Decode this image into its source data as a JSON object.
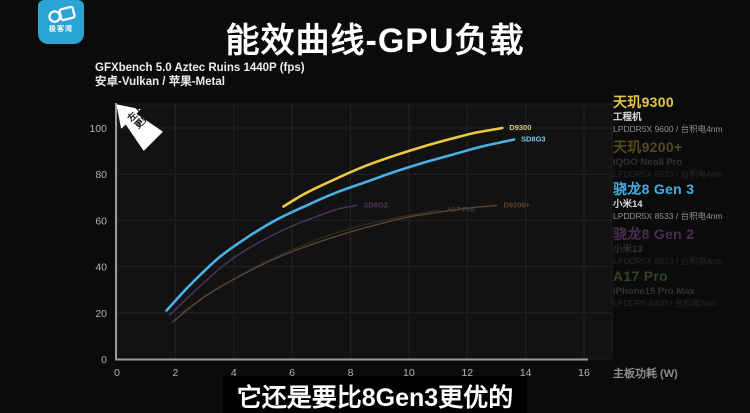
{
  "window": {
    "bg": "#0b0b0b"
  },
  "logo": {
    "label": "极客湾",
    "color": "#2ba3d4",
    "icon": "camera-icon"
  },
  "header": {
    "title": "能效曲线-GPU负载"
  },
  "chart": {
    "subtitle1": "GFXbench 5.0 Aztec Ruins 1440P (fps)",
    "subtitle2": "安卓-Vulkan / 苹果-Metal",
    "hint_badge": {
      "line1": "左上",
      "line2": "更好"
    },
    "xlabel": "主板功耗 (W)"
  },
  "chart_data": {
    "type": "line",
    "title": "能效曲线-GPU负载",
    "subtitle": "GFXbench 5.0 Aztec Ruins 1440P (fps) 安卓-Vulkan / 苹果-Metal",
    "xlabel": "主板功耗 (W)",
    "ylabel": "GFXbench 5.0 Aztec Ruins 1440P (fps)",
    "xlim": [
      0,
      17
    ],
    "ylim": [
      0,
      110
    ],
    "xticks": [
      0,
      2,
      4,
      6,
      8,
      10,
      12,
      14,
      16
    ],
    "yticks": [
      0,
      20,
      40,
      60,
      80,
      100
    ],
    "grid": true,
    "legend_position": "right",
    "series": [
      {
        "name": "A17 Pro",
        "code": "A17 Pro",
        "color": "#22301e",
        "label_color": "#2f4329",
        "width": 1.4,
        "dim": true,
        "points": [
          [
            2.2,
            20
          ],
          [
            3.5,
            31
          ],
          [
            5,
            41.5
          ],
          [
            6.5,
            50
          ],
          [
            8,
            56.5
          ],
          [
            9.5,
            61
          ],
          [
            10.5,
            63.3
          ],
          [
            11.05,
            64.5
          ]
        ]
      },
      {
        "name": "天玑9200+",
        "code": "D9200+",
        "color": "#5c4330",
        "label_color": "#5c4330",
        "width": 1.4,
        "dim": true,
        "points": [
          [
            1.9,
            16
          ],
          [
            3,
            27
          ],
          [
            4,
            34.5
          ],
          [
            5,
            41
          ],
          [
            6,
            46.5
          ],
          [
            7,
            51
          ],
          [
            8,
            55
          ],
          [
            9,
            58.5
          ],
          [
            10,
            61.5
          ],
          [
            11,
            63.5
          ],
          [
            12,
            65.3
          ],
          [
            13,
            66.5
          ]
        ]
      },
      {
        "name": "骁龙8 Gen 2",
        "code": "SD8G2",
        "color": "#4a3565",
        "label_color": "#4a3565",
        "width": 1.4,
        "dim": true,
        "points": [
          [
            1.8,
            19
          ],
          [
            2.8,
            31
          ],
          [
            3.8,
            42
          ],
          [
            4.8,
            50
          ],
          [
            5.8,
            56.5
          ],
          [
            6.8,
            61.5
          ],
          [
            7.6,
            65
          ],
          [
            8.2,
            66.5
          ]
        ]
      },
      {
        "name": "骁龙8 Gen 3",
        "code": "SD8G3",
        "color": "#48b1e4",
        "label_color": "#7cc6ea",
        "width": 2.6,
        "dim": false,
        "points": [
          [
            1.7,
            21
          ],
          [
            2.5,
            32
          ],
          [
            3.5,
            44
          ],
          [
            4.5,
            53
          ],
          [
            5.5,
            60.5
          ],
          [
            6.5,
            66.5
          ],
          [
            7.5,
            72
          ],
          [
            8.5,
            76.5
          ],
          [
            9.5,
            81
          ],
          [
            10.5,
            85
          ],
          [
            11.5,
            88.5
          ],
          [
            12.5,
            92
          ],
          [
            13.6,
            95
          ]
        ]
      },
      {
        "name": "天玑9300",
        "code": "D9300",
        "color": "#e9c93f",
        "label_color": "#dcca7e",
        "width": 2.6,
        "dim": false,
        "points": [
          [
            5.7,
            66
          ],
          [
            6.5,
            72
          ],
          [
            7.5,
            78
          ],
          [
            8.5,
            83.5
          ],
          [
            9.5,
            88
          ],
          [
            10.5,
            92
          ],
          [
            11.5,
            95.5
          ],
          [
            12.3,
            98
          ],
          [
            13.2,
            100
          ]
        ]
      }
    ]
  },
  "legend": [
    {
      "title": "天玑9300",
      "color": "#e5c63d",
      "sub1": "工程机",
      "sub2": "LPDDR5X 9600 / 台积电4nm"
    },
    {
      "title": "天玑9200+",
      "color": "#56491e",
      "sub1": "iQOO Neo8 Pro",
      "sub2": "LPDDR5X 8533 / 台积电4nm"
    },
    {
      "title": "骁龙8 Gen 3",
      "color": "#46aee2",
      "sub1": "小米14",
      "sub2": "LPDDR5X 8533 / 台积电4nm"
    },
    {
      "title": "骁龙8 Gen 2",
      "color": "#4a2d52",
      "sub1": "小米13",
      "sub2": "LPDDR5X 8533 / 台积电4nm"
    },
    {
      "title": "A17 Pro",
      "color": "#2f4329",
      "sub1": "iPhone15 Pro Max",
      "sub2": "LPDDR5 6400 / 台积电3nm"
    }
  ],
  "caption": {
    "text": "它还是要比8Gen3更优的"
  }
}
